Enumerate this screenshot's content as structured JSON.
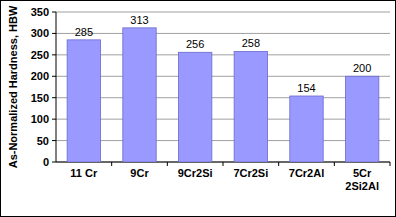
{
  "chart_data": {
    "type": "bar",
    "y_label": "As-Normalized Hardness, HBW",
    "categories": [
      "11 Cr",
      "9Cr",
      "9Cr2Si",
      "7Cr2Si",
      "7Cr2Al",
      "5Cr\n2Si2Al"
    ],
    "values": [
      285,
      313,
      256,
      258,
      154,
      200
    ],
    "color": "#9999ff",
    "ylim": [
      0,
      350
    ],
    "yticks": [
      0,
      50,
      100,
      150,
      200,
      250,
      300,
      350
    ],
    "grid": true,
    "data_labels": true
  }
}
